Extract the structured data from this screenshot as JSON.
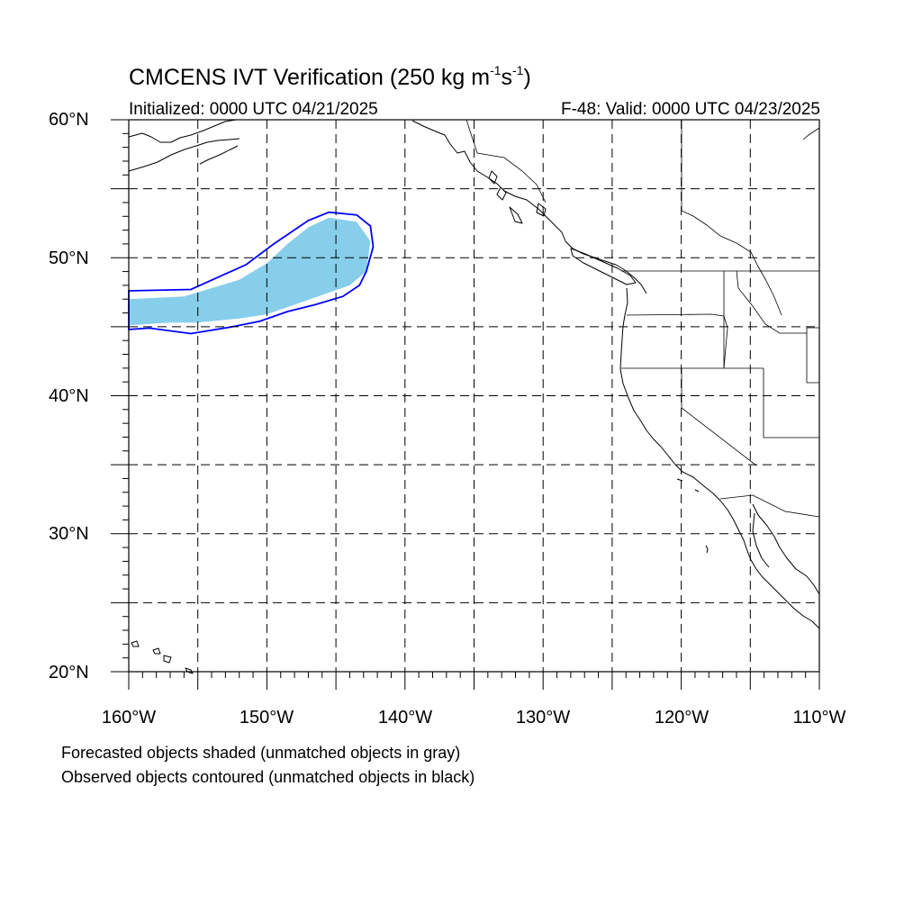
{
  "title": {
    "prefix": "CMCENS IVT Verification (250 kg m",
    "exp1": "-1",
    "mid": "s",
    "exp2": "-1",
    "suffix": ")"
  },
  "subtitle_left": "Initialized: 0000 UTC 04/21/2025",
  "subtitle_right": "F-48: Valid: 0000 UTC 04/23/2025",
  "lat_labels": [
    "60°N",
    "50°N",
    "40°N",
    "30°N",
    "20°N"
  ],
  "lon_labels": [
    "160°W",
    "150°W",
    "140°W",
    "130°W",
    "120°W",
    "110°W"
  ],
  "footnotes": [
    "Forecasted objects shaded (unmatched objects in gray)",
    "Observed objects contoured (unmatched objects in black)"
  ],
  "colors": {
    "forecast_fill": "#87ceeb",
    "observed_contour": "#0000ff",
    "coastline": "#000000",
    "grid": "#000000"
  },
  "map_extent": {
    "lon_min": -160,
    "lon_max": -110,
    "lat_min": 20,
    "lat_max": 60
  },
  "forecast_object": {
    "matched": true,
    "lonlat": [
      [
        -160,
        47.0
      ],
      [
        -156,
        47.2
      ],
      [
        -154,
        47.8
      ],
      [
        -152,
        48.4
      ],
      [
        -150,
        49.6
      ],
      [
        -148.5,
        51.0
      ],
      [
        -147,
        52.2
      ],
      [
        -145.5,
        52.9
      ],
      [
        -143.5,
        52.6
      ],
      [
        -142.5,
        51.2
      ],
      [
        -142.8,
        49.0
      ],
      [
        -144,
        48.0
      ],
      [
        -146,
        47.3
      ],
      [
        -148,
        46.6
      ],
      [
        -150,
        45.9
      ],
      [
        -152,
        45.6
      ],
      [
        -155,
        45.3
      ],
      [
        -157,
        45.3
      ],
      [
        -160,
        45.1
      ]
    ]
  },
  "observed_object": {
    "matched": true,
    "lonlat": [
      [
        -160,
        47.6
      ],
      [
        -155.5,
        47.7
      ],
      [
        -153.5,
        48.6
      ],
      [
        -151.5,
        49.5
      ],
      [
        -149.5,
        51.0
      ],
      [
        -147,
        52.7
      ],
      [
        -145.5,
        53.3
      ],
      [
        -143.5,
        53.1
      ],
      [
        -142.5,
        52.3
      ],
      [
        -142.3,
        50.8
      ],
      [
        -142.8,
        49.0
      ],
      [
        -143.3,
        48.0
      ],
      [
        -144.5,
        47.2
      ],
      [
        -146.5,
        46.6
      ],
      [
        -148.5,
        46.1
      ],
      [
        -150.5,
        45.4
      ],
      [
        -152.5,
        45.0
      ],
      [
        -155.5,
        44.5
      ],
      [
        -158.5,
        44.9
      ],
      [
        -160,
        44.8
      ]
    ]
  }
}
